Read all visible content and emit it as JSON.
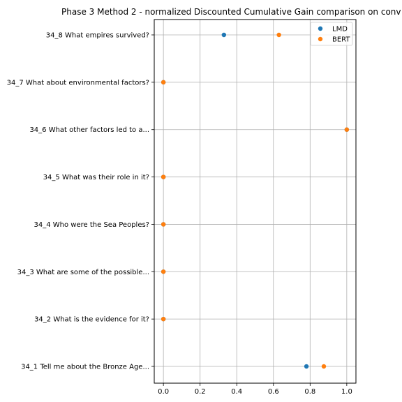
{
  "chart_data": {
    "type": "scatter",
    "title": "Phase 3 Method 2 - normalized Discounted Cumulative Gain comparison on conv",
    "xlabel": "",
    "ylabel": "",
    "xlim": [
      -0.05,
      1.05
    ],
    "xticks": [
      0.0,
      0.2,
      0.4,
      0.6,
      0.8,
      1.0
    ],
    "xtick_labels": [
      "0.0",
      "0.2",
      "0.4",
      "0.6",
      "0.8",
      "1.0"
    ],
    "categories": [
      "34_1 Tell me about the Bronze Age...",
      "34_2 What is the evidence for it?",
      "34_3 What are some of the possible...",
      "34_4 Who were the Sea Peoples?",
      "34_5 What was their role in it?",
      "34_6 What other factors led to a...",
      "34_7 What about environmental factors?",
      "34_8 What empires survived?"
    ],
    "series": [
      {
        "name": "LMD",
        "color": "#1f77b4",
        "values": [
          0.78,
          0.0,
          0.0,
          0.0,
          0.0,
          1.0,
          0.0,
          0.33
        ]
      },
      {
        "name": "BERT",
        "color": "#ff7f0e",
        "values": [
          0.875,
          0.0,
          0.0,
          0.0,
          0.0,
          1.0,
          0.0,
          0.63
        ]
      }
    ],
    "grid": true,
    "legend_position": "top-right"
  }
}
